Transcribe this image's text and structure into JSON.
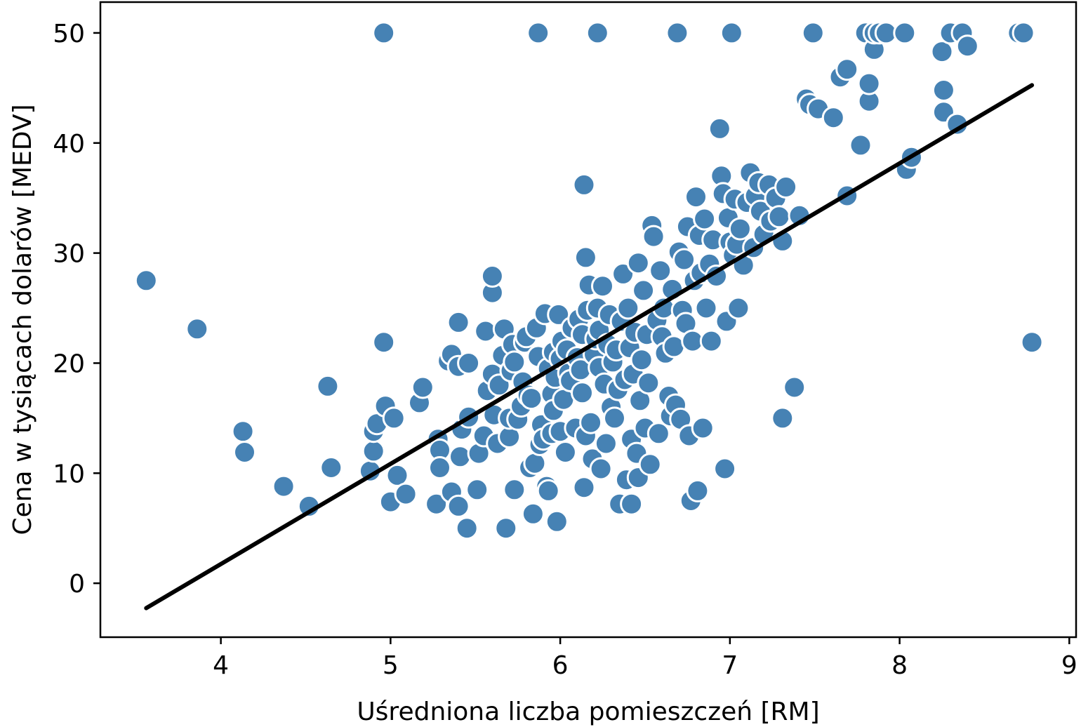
{
  "chart_data": {
    "type": "scatter",
    "title": "",
    "xlabel": "Uśredniona liczba pomieszczeń [RM]",
    "ylabel": "Cena w tysiącach dolarów [MEDV]",
    "xlim": [
      3.29,
      9.04
    ],
    "ylim": [
      -4.9,
      52.8
    ],
    "xticks": [
      4,
      5,
      6,
      7,
      8,
      9
    ],
    "yticks": [
      0,
      10,
      20,
      30,
      40,
      50
    ],
    "xtick_labels": [
      "4",
      "5",
      "6",
      "7",
      "8",
      "9"
    ],
    "ytick_labels": [
      "0",
      "10",
      "20",
      "30",
      "40",
      "50"
    ],
    "grid": false,
    "colors": {
      "points": "#4682b4",
      "point_edge": "#ffffff",
      "line": "#000000"
    },
    "series": [
      {
        "type": "scatter",
        "points": [
          [
            3.56,
            27.5
          ],
          [
            3.86,
            23.1
          ],
          [
            4.13,
            13.8
          ],
          [
            4.14,
            11.9
          ],
          [
            4.37,
            8.8
          ],
          [
            4.52,
            7.0
          ],
          [
            4.63,
            17.9
          ],
          [
            4.65,
            10.5
          ],
          [
            4.88,
            10.2
          ],
          [
            4.9,
            12.0
          ],
          [
            4.9,
            13.8
          ],
          [
            4.92,
            14.5
          ],
          [
            4.96,
            50.0
          ],
          [
            4.96,
            21.9
          ],
          [
            4.97,
            16.1
          ],
          [
            5.0,
            7.4
          ],
          [
            5.02,
            15.0
          ],
          [
            5.04,
            9.8
          ],
          [
            5.09,
            8.1
          ],
          [
            5.17,
            16.4
          ],
          [
            5.19,
            17.8
          ],
          [
            5.27,
            7.2
          ],
          [
            5.28,
            13.1
          ],
          [
            5.29,
            12.1
          ],
          [
            5.29,
            10.5
          ],
          [
            5.34,
            20.2
          ],
          [
            5.36,
            8.3
          ],
          [
            5.36,
            20.8
          ],
          [
            5.4,
            19.7
          ],
          [
            5.4,
            7.0
          ],
          [
            5.4,
            23.7
          ],
          [
            5.41,
            11.5
          ],
          [
            5.42,
            14.0
          ],
          [
            5.45,
            5.0
          ],
          [
            5.46,
            15.1
          ],
          [
            5.46,
            20.0
          ],
          [
            5.51,
            8.5
          ],
          [
            5.52,
            11.8
          ],
          [
            5.55,
            13.4
          ],
          [
            5.56,
            22.9
          ],
          [
            5.57,
            17.5
          ],
          [
            5.6,
            26.4
          ],
          [
            5.6,
            27.9
          ],
          [
            5.6,
            19.0
          ],
          [
            5.61,
            15.3
          ],
          [
            5.63,
            12.7
          ],
          [
            5.64,
            18.0
          ],
          [
            5.66,
            20.7
          ],
          [
            5.67,
            23.1
          ],
          [
            5.68,
            5.0
          ],
          [
            5.7,
            13.3
          ],
          [
            5.7,
            15.0
          ],
          [
            5.71,
            19.3
          ],
          [
            5.72,
            21.7
          ],
          [
            5.73,
            20.1
          ],
          [
            5.73,
            8.5
          ],
          [
            5.75,
            14.9
          ],
          [
            5.77,
            16.1
          ],
          [
            5.78,
            18.3
          ],
          [
            5.79,
            21.9
          ],
          [
            5.8,
            22.4
          ],
          [
            5.81,
            17.1
          ],
          [
            5.82,
            10.5
          ],
          [
            5.83,
            16.8
          ],
          [
            5.84,
            6.3
          ],
          [
            5.85,
            10.9
          ],
          [
            5.86,
            23.2
          ],
          [
            5.87,
            50.0
          ],
          [
            5.87,
            20.6
          ],
          [
            5.88,
            12.6
          ],
          [
            5.89,
            14.4
          ],
          [
            5.9,
            13.1
          ],
          [
            5.91,
            24.5
          ],
          [
            5.92,
            8.8
          ],
          [
            5.93,
            8.4
          ],
          [
            5.93,
            19.5
          ],
          [
            5.95,
            17.2
          ],
          [
            5.95,
            13.6
          ],
          [
            5.96,
            15.7
          ],
          [
            5.96,
            21.0
          ],
          [
            5.97,
            18.7
          ],
          [
            5.98,
            5.6
          ],
          [
            5.99,
            24.4
          ],
          [
            6.0,
            13.8
          ],
          [
            6.0,
            20.4
          ],
          [
            6.01,
            22.0
          ],
          [
            6.02,
            16.7
          ],
          [
            6.03,
            11.9
          ],
          [
            6.04,
            21.2
          ],
          [
            6.05,
            19.1
          ],
          [
            6.06,
            18.4
          ],
          [
            6.07,
            23.2
          ],
          [
            6.09,
            14.1
          ],
          [
            6.1,
            20.5
          ],
          [
            6.11,
            24.0
          ],
          [
            6.12,
            19.4
          ],
          [
            6.13,
            22.6
          ],
          [
            6.13,
            17.3
          ],
          [
            6.14,
            36.2
          ],
          [
            6.14,
            8.7
          ],
          [
            6.15,
            29.6
          ],
          [
            6.15,
            13.4
          ],
          [
            6.16,
            24.8
          ],
          [
            6.17,
            27.1
          ],
          [
            6.18,
            14.6
          ],
          [
            6.19,
            11.3
          ],
          [
            6.2,
            20.8
          ],
          [
            6.21,
            22.2
          ],
          [
            6.22,
            50.0
          ],
          [
            6.22,
            25.0
          ],
          [
            6.23,
            19.6
          ],
          [
            6.23,
            23.0
          ],
          [
            6.24,
            10.4
          ],
          [
            6.25,
            27.0
          ],
          [
            6.26,
            18.1
          ],
          [
            6.27,
            12.7
          ],
          [
            6.28,
            21.7
          ],
          [
            6.29,
            24.4
          ],
          [
            6.3,
            16.0
          ],
          [
            6.31,
            20.1
          ],
          [
            6.32,
            15.0
          ],
          [
            6.33,
            21.2
          ],
          [
            6.34,
            17.6
          ],
          [
            6.35,
            7.2
          ],
          [
            6.36,
            23.8
          ],
          [
            6.37,
            28.1
          ],
          [
            6.38,
            18.5
          ],
          [
            6.39,
            9.4
          ],
          [
            6.4,
            25.0
          ],
          [
            6.41,
            21.4
          ],
          [
            6.42,
            7.2
          ],
          [
            6.42,
            13.1
          ],
          [
            6.43,
            19.0
          ],
          [
            6.44,
            22.8
          ],
          [
            6.45,
            11.8
          ],
          [
            6.46,
            29.1
          ],
          [
            6.46,
            9.6
          ],
          [
            6.47,
            16.6
          ],
          [
            6.48,
            20.3
          ],
          [
            6.49,
            26.6
          ],
          [
            6.5,
            14.1
          ],
          [
            6.51,
            22.6
          ],
          [
            6.52,
            18.2
          ],
          [
            6.53,
            10.8
          ],
          [
            6.54,
            32.5
          ],
          [
            6.55,
            31.5
          ],
          [
            6.56,
            24.1
          ],
          [
            6.57,
            23.9
          ],
          [
            6.58,
            13.6
          ],
          [
            6.59,
            28.4
          ],
          [
            6.6,
            22.4
          ],
          [
            6.61,
            25.0
          ],
          [
            6.62,
            20.9
          ],
          [
            6.64,
            17.0
          ],
          [
            6.65,
            15.2
          ],
          [
            6.66,
            26.7
          ],
          [
            6.67,
            21.5
          ],
          [
            6.68,
            16.2
          ],
          [
            6.69,
            50.0
          ],
          [
            6.7,
            30.1
          ],
          [
            6.71,
            14.9
          ],
          [
            6.72,
            24.8
          ],
          [
            6.73,
            29.4
          ],
          [
            6.74,
            23.6
          ],
          [
            6.75,
            32.4
          ],
          [
            6.76,
            13.4
          ],
          [
            6.77,
            7.5
          ],
          [
            6.78,
            22.0
          ],
          [
            6.79,
            27.5
          ],
          [
            6.8,
            35.1
          ],
          [
            6.81,
            8.4
          ],
          [
            6.82,
            31.6
          ],
          [
            6.83,
            28.2
          ],
          [
            6.84,
            14.1
          ],
          [
            6.85,
            33.1
          ],
          [
            6.86,
            25.0
          ],
          [
            6.88,
            29.0
          ],
          [
            6.89,
            22.0
          ],
          [
            6.9,
            31.2
          ],
          [
            6.92,
            27.9
          ],
          [
            6.94,
            41.3
          ],
          [
            6.95,
            37.0
          ],
          [
            6.96,
            35.4
          ],
          [
            6.97,
            10.4
          ],
          [
            6.98,
            23.8
          ],
          [
            6.99,
            33.2
          ],
          [
            7.0,
            31.0
          ],
          [
            7.01,
            50.0
          ],
          [
            7.02,
            29.8
          ],
          [
            7.03,
            34.9
          ],
          [
            7.04,
            30.8
          ],
          [
            7.05,
            25.0
          ],
          [
            7.06,
            32.2
          ],
          [
            7.08,
            28.9
          ],
          [
            7.1,
            34.6
          ],
          [
            7.12,
            37.3
          ],
          [
            7.14,
            30.5
          ],
          [
            7.15,
            35.2
          ],
          [
            7.17,
            36.4
          ],
          [
            7.18,
            33.8
          ],
          [
            7.2,
            31.7
          ],
          [
            7.23,
            36.2
          ],
          [
            7.24,
            32.9
          ],
          [
            7.27,
            35.0
          ],
          [
            7.29,
            33.3
          ],
          [
            7.31,
            31.1
          ],
          [
            7.33,
            36.0
          ],
          [
            7.38,
            17.8
          ],
          [
            7.31,
            15.0
          ],
          [
            7.41,
            33.4
          ],
          [
            7.45,
            44.0
          ],
          [
            7.47,
            43.5
          ],
          [
            7.49,
            50.0
          ],
          [
            7.52,
            43.1
          ],
          [
            7.61,
            42.3
          ],
          [
            7.65,
            46.0
          ],
          [
            7.69,
            35.2
          ],
          [
            7.69,
            46.7
          ],
          [
            7.77,
            39.8
          ],
          [
            7.8,
            50.0
          ],
          [
            7.82,
            43.8
          ],
          [
            7.82,
            45.4
          ],
          [
            7.85,
            48.5
          ],
          [
            7.85,
            50.0
          ],
          [
            7.88,
            50.0
          ],
          [
            7.92,
            50.0
          ],
          [
            8.03,
            50.0
          ],
          [
            8.04,
            37.6
          ],
          [
            8.07,
            38.7
          ],
          [
            8.25,
            48.3
          ],
          [
            8.26,
            42.8
          ],
          [
            8.26,
            44.8
          ],
          [
            8.3,
            50.0
          ],
          [
            8.34,
            41.7
          ],
          [
            8.37,
            50.0
          ],
          [
            8.4,
            48.8
          ],
          [
            8.7,
            50.0
          ],
          [
            8.73,
            50.0
          ],
          [
            8.78,
            21.9
          ]
        ]
      },
      {
        "type": "line",
        "x": [
          3.56,
          8.78
        ],
        "y": [
          -2.26,
          45.25
        ]
      }
    ]
  }
}
